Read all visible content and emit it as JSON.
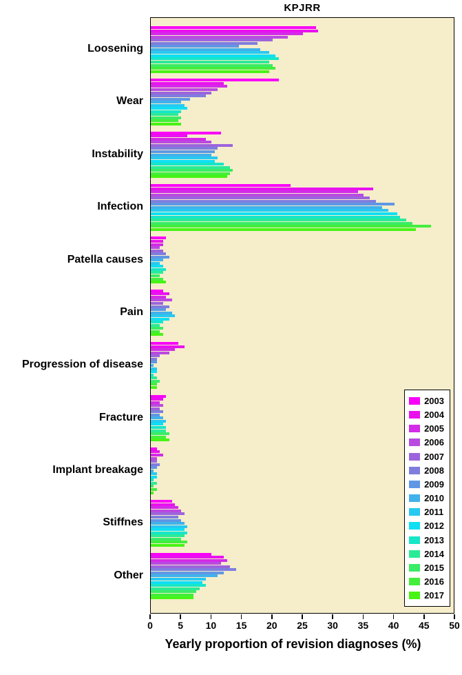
{
  "chart_data": {
    "type": "bar",
    "orientation": "horizontal",
    "title": "KPJRR",
    "xlabel": "Yearly proportion of revision diagnoses (%)",
    "ylabel": "",
    "xlim": [
      0,
      50
    ],
    "xticks": [
      0,
      5,
      10,
      15,
      20,
      25,
      30,
      35,
      40,
      45,
      50
    ],
    "grid": false,
    "legend_position": "bottom-right",
    "plot_background": "#F6EDCB",
    "years": [
      "2003",
      "2004",
      "2005",
      "2006",
      "2007",
      "2008",
      "2009",
      "2010",
      "2011",
      "2012",
      "2013",
      "2014",
      "2015",
      "2016",
      "2017"
    ],
    "colors": [
      "#F800F8",
      "#E912EF",
      "#D32BE7",
      "#B94AE1",
      "#9C64DC",
      "#7F7DDE",
      "#5F97E4",
      "#41B1EB",
      "#27C9F1",
      "#0EDFF4",
      "#17E6C8",
      "#2BEB97",
      "#3AEC67",
      "#43EE3C",
      "#47F414"
    ],
    "groups": [
      {
        "label": "Loosening",
        "values": [
          27.2,
          27.5,
          25.0,
          22.5,
          20.0,
          17.5,
          14.5,
          18.0,
          19.5,
          20.5,
          21.0,
          19.5,
          20.0,
          20.5,
          19.5
        ]
      },
      {
        "label": "Wear",
        "values": [
          21.0,
          12.0,
          12.5,
          11.0,
          10.0,
          9.0,
          6.5,
          5.0,
          5.5,
          6.0,
          5.0,
          4.5,
          5.0,
          4.5,
          5.0
        ]
      },
      {
        "label": "Instability",
        "values": [
          11.5,
          6.0,
          9.0,
          10.0,
          13.5,
          11.0,
          10.5,
          10.0,
          11.0,
          10.5,
          12.0,
          13.0,
          13.5,
          13.0,
          12.5
        ]
      },
      {
        "label": "Infection",
        "values": [
          23.0,
          36.5,
          34.0,
          35.0,
          36.0,
          37.0,
          40.0,
          38.0,
          39.0,
          40.5,
          41.0,
          42.0,
          43.0,
          46.0,
          43.5
        ]
      },
      {
        "label": "Patella causes",
        "values": [
          2.5,
          2.0,
          2.0,
          1.5,
          2.0,
          2.5,
          3.0,
          2.0,
          1.5,
          2.0,
          2.5,
          2.0,
          1.5,
          2.0,
          2.5
        ]
      },
      {
        "label": "Pain",
        "values": [
          2.0,
          3.0,
          2.5,
          3.5,
          2.0,
          3.0,
          2.5,
          3.5,
          4.0,
          3.0,
          2.0,
          1.5,
          2.0,
          1.5,
          2.0
        ]
      },
      {
        "label": "Progression of disease",
        "values": [
          4.5,
          5.5,
          4.0,
          3.0,
          1.5,
          1.0,
          1.0,
          0.5,
          1.0,
          1.0,
          0.5,
          1.0,
          1.5,
          1.0,
          1.0
        ]
      },
      {
        "label": "Fracture",
        "values": [
          2.5,
          2.0,
          1.5,
          2.0,
          1.5,
          2.0,
          1.5,
          2.0,
          2.5,
          2.0,
          2.5,
          2.5,
          3.0,
          2.5,
          3.0
        ]
      },
      {
        "label": "Implant breakage",
        "values": [
          1.0,
          1.5,
          2.0,
          1.0,
          1.0,
          1.5,
          1.0,
          0.5,
          1.0,
          1.0,
          0.5,
          1.0,
          0.5,
          1.0,
          0.5
        ]
      },
      {
        "label": "Stiffnes",
        "values": [
          3.5,
          4.0,
          4.5,
          5.0,
          5.5,
          4.5,
          5.0,
          5.5,
          6.0,
          5.5,
          6.0,
          5.5,
          5.0,
          6.0,
          5.5
        ]
      },
      {
        "label": "Other",
        "values": [
          10.0,
          12.0,
          12.5,
          11.5,
          13.0,
          14.0,
          12.0,
          11.0,
          9.0,
          8.5,
          9.0,
          8.0,
          7.5,
          7.0,
          7.0
        ]
      }
    ]
  }
}
